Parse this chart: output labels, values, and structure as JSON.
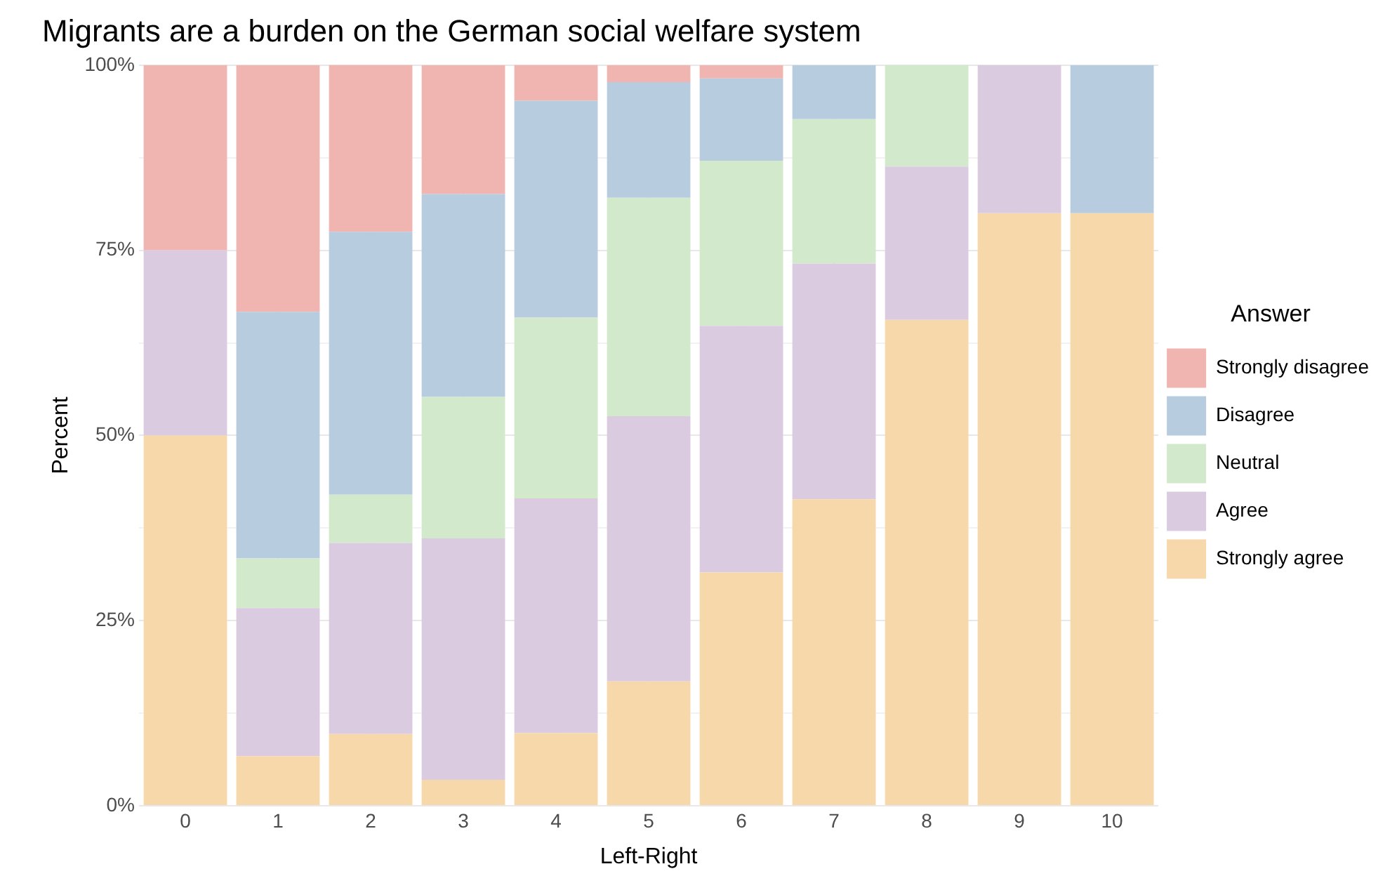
{
  "chart_data": {
    "type": "bar",
    "title": "Migrants are a burden on the German social welfare system",
    "xlabel": "Left-Right",
    "ylabel": "Percent",
    "legend_title": "Answer",
    "categories": [
      "0",
      "1",
      "2",
      "3",
      "4",
      "5",
      "6",
      "7",
      "8",
      "9",
      "10"
    ],
    "stacked": true,
    "series": [
      {
        "name": "Strongly agree",
        "color": "#f7d8ab",
        "values": [
          50,
          6.7,
          9.7,
          3.5,
          9.8,
          16.8,
          31.5,
          41.4,
          65.6,
          80,
          80
        ]
      },
      {
        "name": "Agree",
        "color": "#dbcbe1",
        "values": [
          25,
          20,
          25.8,
          32.6,
          31.7,
          35.8,
          33.3,
          31.8,
          20.7,
          20,
          0
        ]
      },
      {
        "name": "Neutral",
        "color": "#d3e9cb",
        "values": [
          0,
          6.7,
          6.5,
          19.1,
          24.4,
          29.5,
          22.3,
          19.5,
          13.7,
          0,
          0
        ]
      },
      {
        "name": "Disagree",
        "color": "#b8cce0",
        "values": [
          0,
          33.3,
          35.5,
          27.4,
          29.3,
          15.6,
          11.1,
          7.3,
          0,
          0,
          20
        ]
      },
      {
        "name": "Strongly disagree",
        "color": "#f0b5b0",
        "values": [
          25,
          33.3,
          22.6,
          17.4,
          4.9,
          2.3,
          1.8,
          0,
          0,
          0,
          0
        ]
      }
    ],
    "ylim": [
      0,
      100
    ],
    "yticks": [
      {
        "value": 0,
        "label": "0%"
      },
      {
        "value": 12.5,
        "label": null
      },
      {
        "value": 25,
        "label": "25%"
      },
      {
        "value": 37.5,
        "label": null
      },
      {
        "value": 50,
        "label": "50%"
      },
      {
        "value": 62.5,
        "label": null
      },
      {
        "value": 75,
        "label": "75%"
      },
      {
        "value": 87.5,
        "label": null
      },
      {
        "value": 100,
        "label": "100%"
      }
    ],
    "grid": true,
    "legend": "right"
  }
}
